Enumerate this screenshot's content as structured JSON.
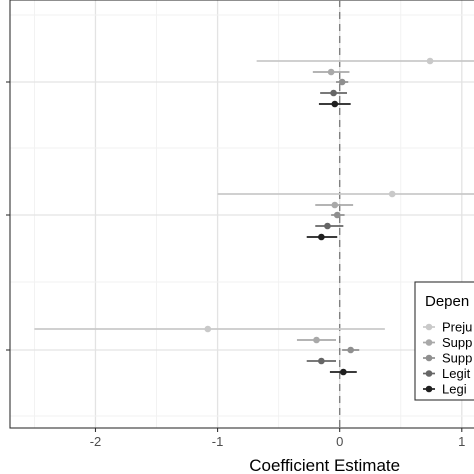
{
  "chart_data": {
    "type": "scatter",
    "subtype": "coefficient-plot-with-error-bars",
    "xlabel": "Coefficient Estimate",
    "ylabel": "",
    "xlim": [
      -2.7,
      1.1
    ],
    "x_ticks": [
      -2,
      -1,
      0,
      1
    ],
    "x_tick_labels": [
      "-2",
      "-1",
      "0",
      "1"
    ],
    "reference_line_x": 0,
    "grid": true,
    "legend": {
      "title": "Depen",
      "placement": "right",
      "entries": [
        "Preju",
        "Supp",
        "Supp",
        "Legit",
        "Legi"
      ]
    },
    "series_colors": [
      "#c9c9c9",
      "#a9a9a9",
      "#8f8f8f",
      "#666666",
      "#1f1f1f"
    ],
    "groups": [
      {
        "name": "",
        "points": [
          {
            "series_index": 0,
            "x": 0.74,
            "lo": -0.68,
            "hi": 1.1
          },
          {
            "series_index": 1,
            "x": -0.07,
            "lo": -0.22,
            "hi": 0.08
          },
          {
            "series_index": 2,
            "x": 0.02,
            "lo": -0.03,
            "hi": 0.07
          },
          {
            "series_index": 3,
            "x": -0.05,
            "lo": -0.16,
            "hi": 0.06
          },
          {
            "series_index": 4,
            "x": -0.04,
            "lo": -0.17,
            "hi": 0.09
          }
        ]
      },
      {
        "name": "",
        "points": [
          {
            "series_index": 0,
            "x": 0.43,
            "lo": -1.0,
            "hi": 1.1
          },
          {
            "series_index": 1,
            "x": -0.04,
            "lo": -0.2,
            "hi": 0.11
          },
          {
            "series_index": 2,
            "x": -0.02,
            "lo": -0.07,
            "hi": 0.04
          },
          {
            "series_index": 3,
            "x": -0.1,
            "lo": -0.2,
            "hi": 0.03
          },
          {
            "series_index": 4,
            "x": -0.15,
            "lo": -0.27,
            "hi": -0.02
          }
        ]
      },
      {
        "name": "",
        "points": [
          {
            "series_index": 0,
            "x": -1.08,
            "lo": -2.5,
            "hi": 0.37
          },
          {
            "series_index": 1,
            "x": -0.19,
            "lo": -0.35,
            "hi": -0.03
          },
          {
            "series_index": 2,
            "x": 0.09,
            "lo": 0.02,
            "hi": 0.16
          },
          {
            "series_index": 3,
            "x": -0.15,
            "lo": -0.27,
            "hi": -0.03
          },
          {
            "series_index": 4,
            "x": 0.03,
            "lo": -0.08,
            "hi": 0.14
          }
        ]
      }
    ]
  }
}
